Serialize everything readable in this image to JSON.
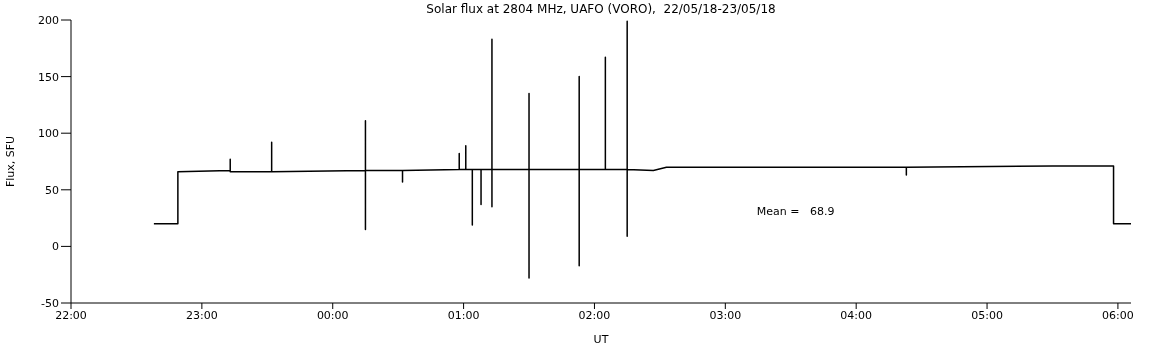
{
  "chart_data": {
    "type": "line",
    "title": "Solar flux at 2804 MHz, UAFO (VORO),  22/05/18-23/05/18",
    "xlabel": "UT",
    "ylabel": "Flux, SFU",
    "annotations": [
      "Mean =   68.9"
    ],
    "xlim": [
      "--05-22T22:00",
      "--05-23T06:06"
    ],
    "xticks": [
      {
        "value": "--05-22T22:00",
        "label": "22:00"
      },
      {
        "value": "--05-22T23:00",
        "label": "23:00"
      },
      {
        "value": "--05-23T00:00",
        "label": "00:00"
      },
      {
        "value": "--05-23T01:00",
        "label": "01:00"
      },
      {
        "value": "--05-23T02:00",
        "label": "02:00"
      },
      {
        "value": "--05-23T03:00",
        "label": "03:00"
      },
      {
        "value": "--05-23T04:00",
        "label": "04:00"
      },
      {
        "value": "--05-23T05:00",
        "label": "05:00"
      },
      {
        "value": "--05-23T06:00",
        "label": "06:00"
      }
    ],
    "ylim": [
      -50,
      200
    ],
    "yticks": [
      -50,
      0,
      50,
      100,
      150,
      200
    ],
    "grid": false,
    "legend": false,
    "marker": "none",
    "line_style": "solid",
    "series": [
      {
        "color": "#000000",
        "x": [
          "--05-22T22:38",
          "--05-22T22:49",
          "--05-22T22:49",
          "--05-22T23:13",
          "--05-22T23:13",
          "--05-22T23:13",
          "--05-22T23:32",
          "--05-22T23:32",
          "--05-22T23:32",
          "--05-23T00:15",
          "--05-23T00:15",
          "--05-23T00:15",
          "--05-23T00:15",
          "--05-23T00:32",
          "--05-23T00:32",
          "--05-23T00:32",
          "--05-23T00:58",
          "--05-23T00:58",
          "--05-23T00:58",
          "--05-23T01:01",
          "--05-23T01:01",
          "--05-23T01:01",
          "--05-23T01:04",
          "--05-23T01:04",
          "--05-23T01:04",
          "--05-23T01:08",
          "--05-23T01:08",
          "--05-23T01:08",
          "--05-23T01:13",
          "--05-23T01:13",
          "--05-23T01:13",
          "--05-23T01:13",
          "--05-23T01:30",
          "--05-23T01:30",
          "--05-23T01:30",
          "--05-23T01:30",
          "--05-23T01:53",
          "--05-23T01:53",
          "--05-23T01:53",
          "--05-23T01:53",
          "--05-23T02:05",
          "--05-23T02:05",
          "--05-23T02:05",
          "--05-23T02:15",
          "--05-23T02:15",
          "--05-23T02:15",
          "--05-23T02:15",
          "--05-23T02:27",
          "--05-23T02:33",
          "--05-23T04:23",
          "--05-23T04:23",
          "--05-23T04:23",
          "--05-23T05:30",
          "--05-23T05:58",
          "--05-23T05:58",
          "--05-23T06:06"
        ],
        "values": [
          20,
          20,
          66,
          67,
          77,
          66,
          66,
          92,
          66,
          67,
          111,
          15,
          67,
          67,
          57,
          67,
          68,
          82,
          68,
          68,
          89,
          68,
          68,
          19,
          68,
          68,
          37,
          68,
          68,
          183,
          35,
          68,
          68,
          135,
          -28,
          68,
          68,
          150,
          -17,
          68,
          68,
          167,
          68,
          68,
          199,
          9,
          68,
          67,
          70,
          70,
          63,
          70,
          71,
          71,
          20,
          20
        ]
      }
    ]
  }
}
